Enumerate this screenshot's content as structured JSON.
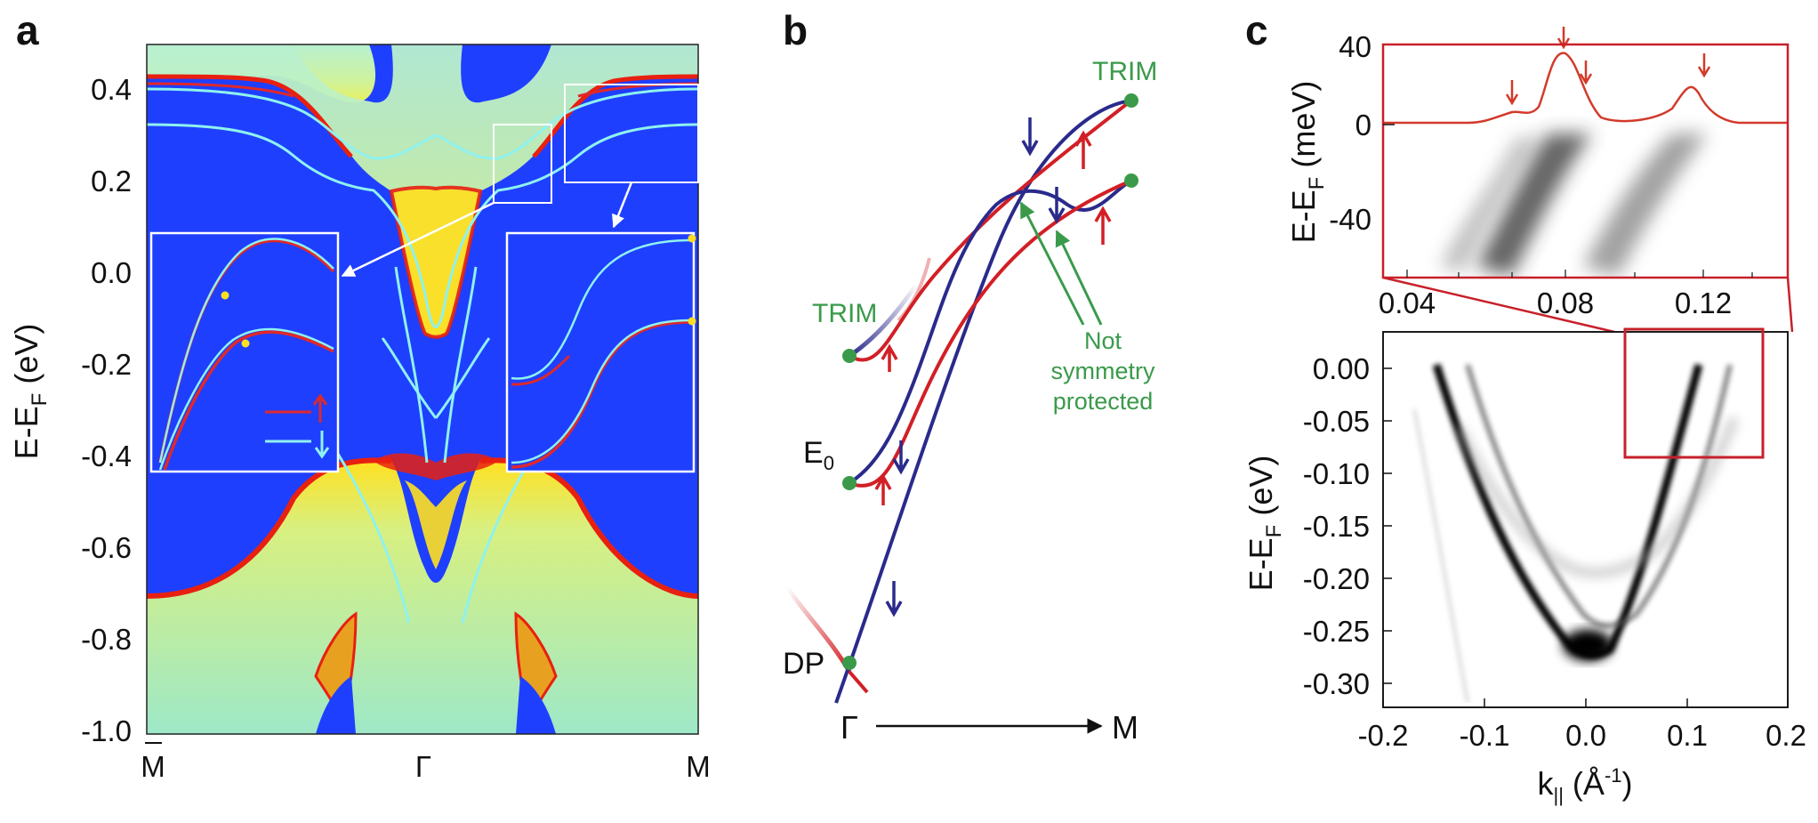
{
  "panels": {
    "a": {
      "label": "a",
      "ylabel_main": "E-E",
      "ylabel_sub": "F",
      "ylabel_unit": " (eV)",
      "yticks": [
        "0.4",
        "0.2",
        "0.0",
        "-0.2",
        "-0.4",
        "-0.6",
        "-0.8",
        "-1.0"
      ],
      "xticks": [
        "M",
        "Γ",
        "M"
      ],
      "colors": {
        "background": "#1f3fff",
        "band": "#b8f0d0",
        "edge": "#e82010",
        "hot": "#ffe020",
        "surface_red": "#e0282a",
        "surface_cyan": "#8ff2ee"
      }
    },
    "b": {
      "label": "b",
      "trim_top": "TRIM",
      "trim_left": "TRIM",
      "e0_main": "E",
      "e0_sub": "0",
      "dp": "DP",
      "note_line1": "Not",
      "note_line2": "symmetry",
      "note_line3": "protected",
      "x_left": "Γ",
      "x_right": "M",
      "colors": {
        "blue": "#2a2a8c",
        "red": "#d21f26",
        "green": "#3a9a4a"
      }
    },
    "c": {
      "label": "c",
      "top_ylabel_main": "E-E",
      "top_ylabel_sub": "F",
      "top_ylabel_unit": " (meV)",
      "top_yticks": [
        "40",
        "0",
        "-40"
      ],
      "top_xticks": [
        "0.04",
        "0.08",
        "0.12"
      ],
      "bottom_ylabel_main": "E-E",
      "bottom_ylabel_sub": "F",
      "bottom_ylabel_unit": " (eV)",
      "bottom_yticks": [
        "0.00",
        "-0.05",
        "-0.10",
        "-0.15",
        "-0.20",
        "-0.25",
        "-0.30"
      ],
      "bottom_xticks": [
        "-0.2",
        "-0.1",
        "0.0",
        "0.1",
        "0.2"
      ],
      "xlabel_main": "k",
      "xlabel_sub": "||",
      "xlabel_unit": " (Å",
      "xlabel_exp": "-1",
      "xlabel_close": ")",
      "colors": {
        "frame": "#c8202a",
        "edc": "#d23a2a"
      }
    }
  }
}
